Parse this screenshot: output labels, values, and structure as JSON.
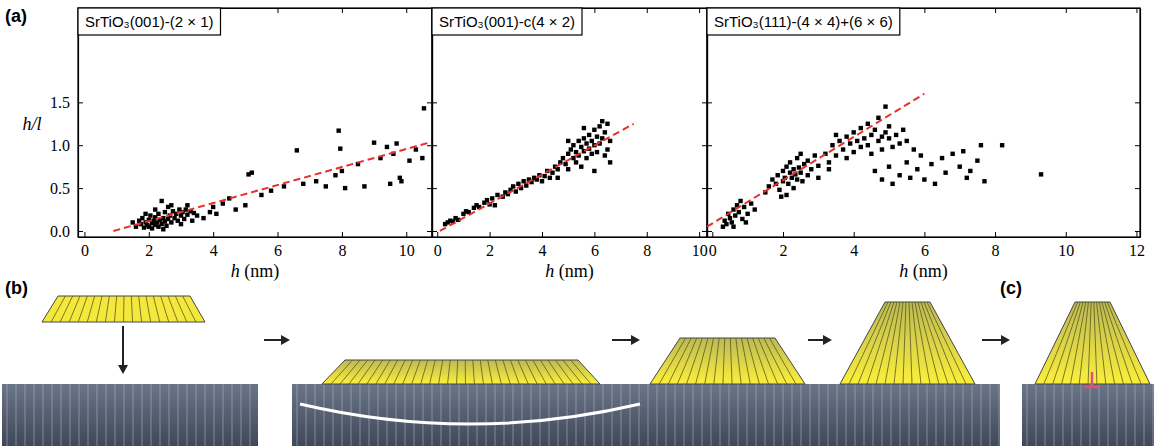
{
  "figure": {
    "labels": {
      "a": "(a)",
      "b": "(b)",
      "c": "(c)"
    }
  },
  "chart_data": [
    {
      "type": "scatter",
      "title": "SrTiO₃(001)-(2 × 1)",
      "x_label": "h (nm)",
      "y_label": "h/l",
      "xlim": [
        -0.2,
        10.8
      ],
      "ylim": [
        -0.07,
        2.6
      ],
      "xticks": [
        0,
        2,
        4,
        6,
        8,
        10
      ],
      "yticks": [
        {
          "value": 0,
          "label": "0.0"
        },
        {
          "value": 0.5,
          "label": "0.5"
        },
        {
          "value": 1,
          "label": "1.0"
        },
        {
          "value": 1.5,
          "label": "1.5"
        }
      ],
      "series": [
        {
          "type": "scatter",
          "marker": "square",
          "color": "#000000",
          "x": [
            1.5,
            1.6,
            1.7,
            1.75,
            1.8,
            1.85,
            1.9,
            1.95,
            2.0,
            2.0,
            2.05,
            2.1,
            2.1,
            2.15,
            2.2,
            2.2,
            2.25,
            2.3,
            2.3,
            2.35,
            2.4,
            2.4,
            2.45,
            2.5,
            2.5,
            2.55,
            2.6,
            2.6,
            2.65,
            2.7,
            2.75,
            2.8,
            2.85,
            2.9,
            2.95,
            3.0,
            3.0,
            3.05,
            3.1,
            3.15,
            3.2,
            3.3,
            3.35,
            3.4,
            3.5,
            2.2,
            1.9,
            2.7,
            3.2,
            2.45,
            3.7,
            3.9,
            4.0,
            4.1,
            4.3,
            4.5,
            4.7,
            5.0,
            5.1,
            5.2,
            5.5,
            5.8,
            6.2,
            6.6,
            6.8,
            7.2,
            7.5,
            7.8,
            7.9,
            7.95,
            8.0,
            8.1,
            8.5,
            8.7,
            9.0,
            9.2,
            9.4,
            9.5,
            9.6,
            9.7,
            9.8,
            9.85,
            10.1,
            10.3,
            10.5,
            10.55
          ],
          "values": [
            0.1,
            0.05,
            0.12,
            0.08,
            0.15,
            0.04,
            0.1,
            0.07,
            0.13,
            0.05,
            0.18,
            0.09,
            0.03,
            0.12,
            0.07,
            0.16,
            0.1,
            0.05,
            0.2,
            0.13,
            0.08,
            0.35,
            0.15,
            0.11,
            0.22,
            0.06,
            0.14,
            0.28,
            0.18,
            0.1,
            0.23,
            0.15,
            0.2,
            0.12,
            0.25,
            0.18,
            0.08,
            0.22,
            0.14,
            0.25,
            0.19,
            0.23,
            0.12,
            0.21,
            0.18,
            0.25,
            0.2,
            0.3,
            0.3,
            0.02,
            0.15,
            0.22,
            0.28,
            0.2,
            0.32,
            0.38,
            0.25,
            0.3,
            0.66,
            0.68,
            0.42,
            0.47,
            0.52,
            0.94,
            0.55,
            0.58,
            0.52,
            0.65,
            1.17,
            0.96,
            0.7,
            0.5,
            0.78,
            0.52,
            1.03,
            0.85,
            0.98,
            0.55,
            0.9,
            1.02,
            0.62,
            0.58,
            0.82,
            0.95,
            0.85,
            1.43
          ]
        },
        {
          "type": "line",
          "line_style": "dashed",
          "color": "#e8302a",
          "x": [
            0.9,
            10.8
          ],
          "values": [
            0,
            1.04
          ]
        }
      ]
    },
    {
      "type": "scatter",
      "title": "SrTiO₃(001)-c(4 × 2)",
      "x_label": "h (nm)",
      "tick_labels": "x",
      "xlim": [
        -0.2,
        10.3
      ],
      "ylim": [
        -0.07,
        2.6
      ],
      "xticks": [
        0,
        2,
        4,
        6,
        8,
        10
      ],
      "yticks": [
        {
          "value": 0,
          "label": "0.0"
        },
        {
          "value": 0.5,
          "label": "0.5"
        },
        {
          "value": 1,
          "label": "1.0"
        },
        {
          "value": 1.5,
          "label": "1.5"
        }
      ],
      "series": [
        {
          "type": "scatter",
          "marker": "square",
          "color": "#000000",
          "x": [
            0.3,
            0.4,
            0.5,
            0.6,
            0.7,
            0.8,
            1.0,
            1.1,
            1.2,
            1.4,
            1.5,
            1.6,
            1.8,
            1.9,
            2.0,
            2.1,
            2.2,
            2.3,
            2.5,
            2.6,
            2.7,
            2.8,
            2.9,
            3.0,
            3.1,
            3.2,
            3.3,
            3.4,
            3.5,
            3.6,
            3.7,
            3.8,
            3.9,
            4.0,
            4.1,
            4.2,
            4.3,
            4.4,
            4.5,
            4.6,
            4.7,
            4.8,
            4.9,
            5.0,
            5.0,
            5.1,
            5.2,
            5.2,
            5.3,
            5.3,
            5.4,
            5.4,
            5.5,
            5.5,
            5.6,
            5.6,
            5.7,
            5.7,
            5.8,
            5.8,
            5.9,
            5.9,
            6.0,
            6.0,
            6.1,
            6.1,
            6.2,
            6.2,
            6.3,
            6.3,
            6.4,
            6.4,
            6.5,
            6.5,
            6.6,
            6.6,
            5.0,
            5.6,
            4.6,
            6.0
          ],
          "values": [
            0.08,
            0.1,
            0.12,
            0.11,
            0.15,
            0.13,
            0.2,
            0.23,
            0.22,
            0.27,
            0.3,
            0.28,
            0.33,
            0.36,
            0.31,
            0.38,
            0.3,
            0.42,
            0.4,
            0.45,
            0.43,
            0.48,
            0.52,
            0.46,
            0.55,
            0.5,
            0.58,
            0.53,
            0.6,
            0.57,
            0.62,
            0.6,
            0.65,
            0.58,
            0.64,
            0.7,
            0.62,
            0.68,
            0.75,
            0.72,
            0.8,
            0.85,
            0.78,
            0.9,
            0.72,
            0.95,
            0.85,
            1.0,
            0.92,
            0.8,
            1.05,
            0.88,
            0.98,
            0.75,
            1.08,
            0.93,
            1.02,
            0.85,
            1.12,
            0.96,
            1.05,
            0.9,
            1.18,
            1.0,
            1.1,
            0.92,
            1.22,
            1.02,
            1.28,
            1.08,
            1.15,
            0.88,
            1.25,
            0.95,
            1.05,
            0.8,
            1.05,
            1.2,
            0.62,
            0.7
          ]
        },
        {
          "type": "line",
          "line_style": "dashed",
          "color": "#e8302a",
          "x": [
            0.1,
            7.5
          ],
          "values": [
            0,
            1.25
          ]
        }
      ]
    },
    {
      "type": "scatter",
      "title": "SrTiO₃(111)-(4 × 4)+(6 × 6)",
      "x_label": "h (nm)",
      "tick_labels": "x",
      "xlim": [
        -0.15,
        12.1
      ],
      "ylim": [
        -0.07,
        2.6
      ],
      "xticks": [
        0,
        2,
        4,
        6,
        8,
        10,
        12
      ],
      "yticks": [
        {
          "value": 0,
          "label": "0.0"
        },
        {
          "value": 0.5,
          "label": "0.5"
        },
        {
          "value": 1,
          "label": "1.0"
        },
        {
          "value": 1.5,
          "label": "1.5"
        }
      ],
      "series": [
        {
          "type": "scatter",
          "marker": "square",
          "color": "#000000",
          "x": [
            0.3,
            0.35,
            0.4,
            0.45,
            0.5,
            0.55,
            0.6,
            0.65,
            0.7,
            0.75,
            0.8,
            0.85,
            0.9,
            1.0,
            1.1,
            1.2,
            0.6,
            0.95,
            1.5,
            1.6,
            1.7,
            1.8,
            1.85,
            1.9,
            2.0,
            2.0,
            2.05,
            2.1,
            2.15,
            2.2,
            2.2,
            2.25,
            2.3,
            2.3,
            2.35,
            2.4,
            2.4,
            2.45,
            2.5,
            2.5,
            2.55,
            2.6,
            2.7,
            2.7,
            2.8,
            2.9,
            3.0,
            3.0,
            2.1,
            1.95,
            3.2,
            3.3,
            3.4,
            3.5,
            3.6,
            3.7,
            3.8,
            3.8,
            3.9,
            4.0,
            4.0,
            4.1,
            4.2,
            4.2,
            4.3,
            4.4,
            4.4,
            4.5,
            4.5,
            4.6,
            4.7,
            4.7,
            4.8,
            4.8,
            4.9,
            4.9,
            5.0,
            5.0,
            5.1,
            5.2,
            5.3,
            5.4,
            5.5,
            3.3,
            3.5,
            4.6,
            4.8,
            5.0,
            5.1,
            5.3,
            5.5,
            5.6,
            5.8,
            5.9,
            6.0,
            6.2,
            6.3,
            6.5,
            6.6,
            6.8,
            7.0,
            7.1,
            7.2,
            7.3,
            7.5,
            7.6,
            7.7,
            8.2,
            9.3,
            5.7
          ],
          "values": [
            0.05,
            0.12,
            0.08,
            0.2,
            0.15,
            0.1,
            0.25,
            0.18,
            0.3,
            0.22,
            0.35,
            0.14,
            0.28,
            0.2,
            0.32,
            0.25,
            0.05,
            0.1,
            0.45,
            0.52,
            0.6,
            0.55,
            0.65,
            0.48,
            0.7,
            0.58,
            0.62,
            0.75,
            0.55,
            0.68,
            0.8,
            0.62,
            0.72,
            0.5,
            0.66,
            0.85,
            0.6,
            0.74,
            0.68,
            0.9,
            0.58,
            0.78,
            0.65,
            0.82,
            0.72,
            0.88,
            0.76,
            0.62,
            0.42,
            0.4,
            0.9,
            0.8,
            1.0,
            0.88,
            1.05,
            0.95,
            1.1,
            0.85,
            1.02,
            1.15,
            0.92,
            1.05,
            1.2,
            0.98,
            1.08,
            1.25,
            1.0,
            1.12,
            0.9,
            1.18,
            1.05,
            1.32,
            1.1,
            0.95,
            1.45,
            1.15,
            1.08,
            1.22,
            0.98,
            1.12,
            1.02,
            1.18,
            1.05,
            0.72,
            1.12,
            0.7,
            0.6,
            0.75,
            0.55,
            0.65,
            0.8,
            0.62,
            0.72,
            0.88,
            0.6,
            0.78,
            0.55,
            0.85,
            0.68,
            0.9,
            0.75,
            0.93,
            0.62,
            0.7,
            0.82,
            1.0,
            0.58,
            1.0,
            0.66,
            0.95
          ]
        },
        {
          "type": "line",
          "line_style": "dashed",
          "color": "#e8302a",
          "x": [
            -0.15,
            6.0
          ],
          "values": [
            0.05,
            1.6
          ]
        }
      ]
    }
  ]
}
